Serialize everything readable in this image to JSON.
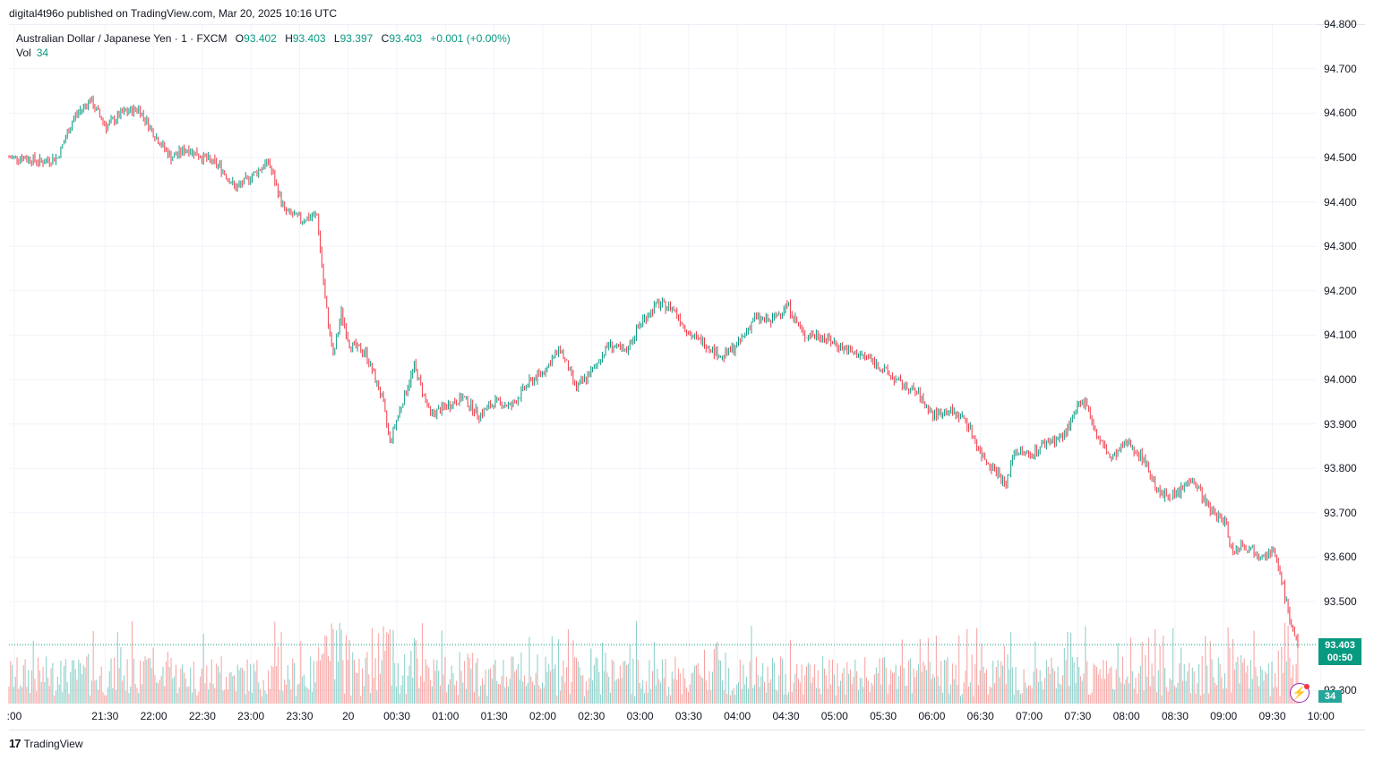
{
  "header": {
    "published": "digital4t96o published on TradingView.com, Mar 20, 2025 10:16 UTC"
  },
  "legend": {
    "symbol": "Australian Dollar / Japanese Yen · 1 · FXCM",
    "o_label": "O",
    "o": "93.402",
    "h_label": "H",
    "h": "93.403",
    "l_label": "L",
    "l": "93.397",
    "c_label": "C",
    "c": "93.403",
    "change": "+0.001 (+0.00%)",
    "vol_label": "Vol",
    "vol": "34"
  },
  "price_tag": {
    "price": "93.403",
    "countdown": "00:50"
  },
  "volume_tag": "34",
  "footer": {
    "brand": "TradingView",
    "logo_glyph": "17"
  },
  "colors": {
    "up": "#089981",
    "down": "#f23645",
    "vol_up": "#26a69a",
    "vol_down": "#ef5350",
    "grid": "#f0f3fa",
    "bolt": "#9c27b0"
  },
  "chart_data": {
    "type": "candlestick",
    "title": "Australian Dollar / Japanese Yen · 1 · FXCM",
    "y_ticks": [
      "94.800",
      "94.700",
      "94.600",
      "94.500",
      "94.400",
      "94.300",
      "94.200",
      "94.100",
      "94.000",
      "93.900",
      "93.800",
      "93.700",
      "93.600",
      "93.500",
      "93.300"
    ],
    "ylim": [
      93.23,
      94.81
    ],
    "x_ticks": [
      ":00",
      "21:30",
      "22:00",
      "22:30",
      "23:00",
      "23:30",
      "20",
      "00:30",
      "01:00",
      "01:30",
      "02:00",
      "02:30",
      "03:00",
      "03:30",
      "04:00",
      "04:30",
      "05:00",
      "05:30",
      "06:00",
      "06:30",
      "07:00",
      "07:30",
      "08:00",
      "08:30",
      "09:00",
      "09:30",
      "10:00"
    ],
    "close_path_times": [
      "21:00",
      "21:10",
      "21:20",
      "21:30",
      "21:40",
      "21:50",
      "22:00",
      "22:10",
      "22:20",
      "22:30",
      "22:40",
      "22:50",
      "23:00",
      "23:10",
      "23:20",
      "23:30",
      "23:40",
      "23:50",
      "00:00",
      "00:10",
      "00:15",
      "00:20",
      "00:25",
      "00:30",
      "00:40",
      "00:50",
      "00:55",
      "01:00",
      "01:10",
      "01:20",
      "01:30",
      "01:40",
      "01:50",
      "02:00",
      "02:10",
      "02:20",
      "02:30",
      "02:40",
      "02:50",
      "03:00",
      "03:10",
      "03:20",
      "03:30",
      "03:40",
      "03:50",
      "04:00",
      "04:10",
      "04:20",
      "04:30",
      "04:40",
      "04:50",
      "05:00",
      "05:10",
      "05:20",
      "05:30",
      "05:40",
      "05:50",
      "06:00",
      "06:10",
      "06:20",
      "06:30",
      "06:40",
      "06:50",
      "07:00",
      "07:10",
      "07:15",
      "07:20",
      "07:30",
      "07:40",
      "07:50",
      "08:00",
      "08:05",
      "08:10",
      "08:20",
      "08:30",
      "08:40",
      "08:50",
      "09:00",
      "09:10",
      "09:20",
      "09:30",
      "09:35",
      "09:40",
      "09:50",
      "10:00",
      "10:05",
      "10:10",
      "10:15"
    ],
    "close_path_values": [
      94.5,
      94.5,
      94.49,
      94.5,
      94.59,
      94.63,
      94.57,
      94.6,
      94.61,
      94.55,
      94.5,
      94.52,
      94.5,
      94.48,
      94.43,
      94.46,
      94.49,
      94.38,
      94.36,
      94.37,
      94.18,
      94.05,
      94.15,
      94.08,
      94.06,
      93.96,
      93.86,
      93.92,
      94.03,
      93.92,
      93.94,
      93.96,
      93.92,
      93.95,
      93.94,
      93.99,
      94.02,
      94.07,
      93.98,
      94.02,
      94.08,
      94.06,
      94.13,
      94.17,
      94.16,
      94.1,
      94.08,
      94.05,
      94.08,
      94.14,
      94.13,
      94.17,
      94.1,
      94.1,
      94.08,
      94.06,
      94.05,
      94.02,
      93.99,
      93.97,
      93.92,
      93.93,
      93.91,
      93.83,
      93.79,
      93.76,
      93.84,
      93.83,
      93.86,
      93.87,
      93.94,
      93.95,
      93.88,
      93.82,
      93.86,
      93.82,
      93.74,
      93.74,
      93.78,
      93.71,
      93.68,
      93.61,
      93.63,
      93.61,
      93.61,
      93.55,
      93.46,
      93.403
    ],
    "last_price": 93.403,
    "volume_last": 34
  }
}
